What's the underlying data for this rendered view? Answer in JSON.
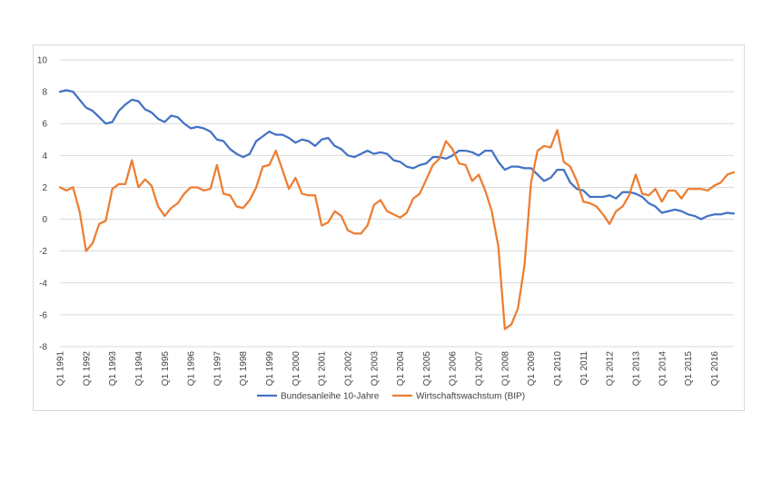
{
  "chart_data": {
    "type": "line",
    "title": "",
    "xlabel": "",
    "ylabel": "",
    "ylim": [
      -8,
      10
    ],
    "yticks": [
      10,
      8,
      6,
      4,
      2,
      0,
      -2,
      -4,
      -6,
      -8
    ],
    "grid": true,
    "legend_position": "bottom-center",
    "x_tick_labels": [
      "Q1 1991",
      "Q1 1992",
      "Q1 1993",
      "Q1 1994",
      "Q1 1995",
      "Q1 1996",
      "Q1 1997",
      "Q1 1998",
      "Q1 1999",
      "Q1 2000",
      "Q1 2001",
      "Q1 2002",
      "Q1 2003",
      "Q1 2004",
      "Q1 2005",
      "Q1 2006",
      "Q1 2007",
      "Q1 2008",
      "Q1 2009",
      "Q1 2010",
      "Q1 2011",
      "Q1 2012",
      "Q1 2013",
      "Q1 2014",
      "Q1 2015",
      "Q1 2016"
    ],
    "series": [
      {
        "name": "Bundesanleihe 10-Jahre",
        "color": "#4472c4",
        "values": [
          8.0,
          8.1,
          8.0,
          7.5,
          7.0,
          6.8,
          6.4,
          6.0,
          6.1,
          6.8,
          7.2,
          7.5,
          7.4,
          6.9,
          6.7,
          6.3,
          6.1,
          6.5,
          6.4,
          6.0,
          5.7,
          5.8,
          5.7,
          5.5,
          5.0,
          4.9,
          4.4,
          4.1,
          3.9,
          4.1,
          4.9,
          5.2,
          5.5,
          5.3,
          5.3,
          5.1,
          4.8,
          5.0,
          4.9,
          4.6,
          5.0,
          5.1,
          4.6,
          4.4,
          4.0,
          3.9,
          4.1,
          4.3,
          4.1,
          4.2,
          4.1,
          3.7,
          3.6,
          3.3,
          3.2,
          3.4,
          3.5,
          3.9,
          3.9,
          3.8,
          4.0,
          4.3,
          4.3,
          4.2,
          4.0,
          4.3,
          4.3,
          3.6,
          3.1,
          3.3,
          3.3,
          3.2,
          3.2,
          2.8,
          2.4,
          2.6,
          3.1,
          3.1,
          2.3,
          1.9,
          1.8,
          1.4,
          1.4,
          1.4,
          1.5,
          1.3,
          1.7,
          1.7,
          1.6,
          1.4,
          1.0,
          0.8,
          0.4,
          0.5,
          0.6,
          0.5,
          0.3,
          0.2,
          0.0,
          0.2,
          0.3,
          0.3,
          0.4,
          0.35
        ]
      },
      {
        "name": "Wirtschaftswachstum (BIP)",
        "color": "#ed7d31",
        "values": [
          2.0,
          1.8,
          2.0,
          0.5,
          -2.0,
          -1.5,
          -0.3,
          -0.1,
          1.9,
          2.2,
          2.2,
          3.7,
          2.0,
          2.5,
          2.1,
          0.8,
          0.2,
          0.7,
          1.0,
          1.6,
          2.0,
          2.0,
          1.8,
          1.9,
          3.4,
          1.6,
          1.5,
          0.8,
          0.7,
          1.2,
          2.0,
          3.3,
          3.4,
          4.3,
          3.1,
          1.9,
          2.6,
          1.6,
          1.5,
          1.5,
          -0.4,
          -0.2,
          0.5,
          0.2,
          -0.7,
          -0.9,
          -0.9,
          -0.4,
          0.9,
          1.2,
          0.5,
          0.3,
          0.1,
          0.4,
          1.3,
          1.6,
          2.5,
          3.4,
          3.8,
          4.9,
          4.4,
          3.5,
          3.4,
          2.4,
          2.8,
          1.8,
          0.5,
          -1.7,
          -6.9,
          -6.6,
          -5.6,
          -2.9,
          2.3,
          4.3,
          4.6,
          4.5,
          5.6,
          3.6,
          3.3,
          2.4,
          1.1,
          1.0,
          0.8,
          0.3,
          -0.3,
          0.5,
          0.8,
          1.5,
          2.8,
          1.6,
          1.5,
          1.9,
          1.1,
          1.8,
          1.8,
          1.3,
          1.9,
          1.9,
          1.9,
          1.8,
          2.1,
          2.3,
          2.8,
          2.95
        ]
      }
    ]
  }
}
